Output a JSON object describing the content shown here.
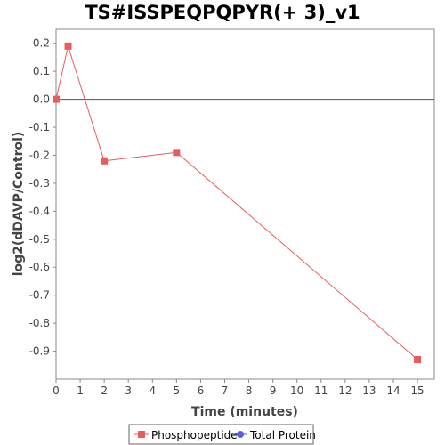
{
  "chart_data": {
    "type": "line",
    "title": "TS#ISSPEQPQPYR(+ 3)_v1",
    "xlabel": "Time (minutes)",
    "ylabel": "log2(dDAVP/Control)",
    "xlim": [
      0,
      15.7
    ],
    "ylim": [
      -1.0,
      0.25
    ],
    "x_ticks": [
      0,
      1,
      2,
      3,
      4,
      5,
      6,
      7,
      8,
      9,
      10,
      11,
      12,
      13,
      14,
      15
    ],
    "y_ticks": [
      0.2,
      0.1,
      0.0,
      -0.1,
      -0.2,
      -0.3,
      -0.4,
      -0.5,
      -0.6,
      -0.7,
      -0.8,
      -0.9
    ],
    "y_tick_labels": [
      "0.2",
      "0.1",
      "0.0",
      "-0.1",
      "-0.2",
      "-0.3",
      "-0.4",
      "-0.5",
      "-0.6",
      "-0.7",
      "-0.8",
      "-0.9"
    ],
    "zero_line": true,
    "grid": false,
    "legend_position": "bottom",
    "series": [
      {
        "name": "Phosphopeptide",
        "color": "#e85c5c",
        "marker": "square",
        "x": [
          0,
          0.5,
          2,
          5,
          15
        ],
        "y": [
          0.0,
          0.19,
          -0.22,
          -0.19,
          -0.93
        ]
      },
      {
        "name": "Total Protein",
        "color": "#5c5ce8",
        "marker": "circle",
        "x": [],
        "y": []
      }
    ]
  }
}
